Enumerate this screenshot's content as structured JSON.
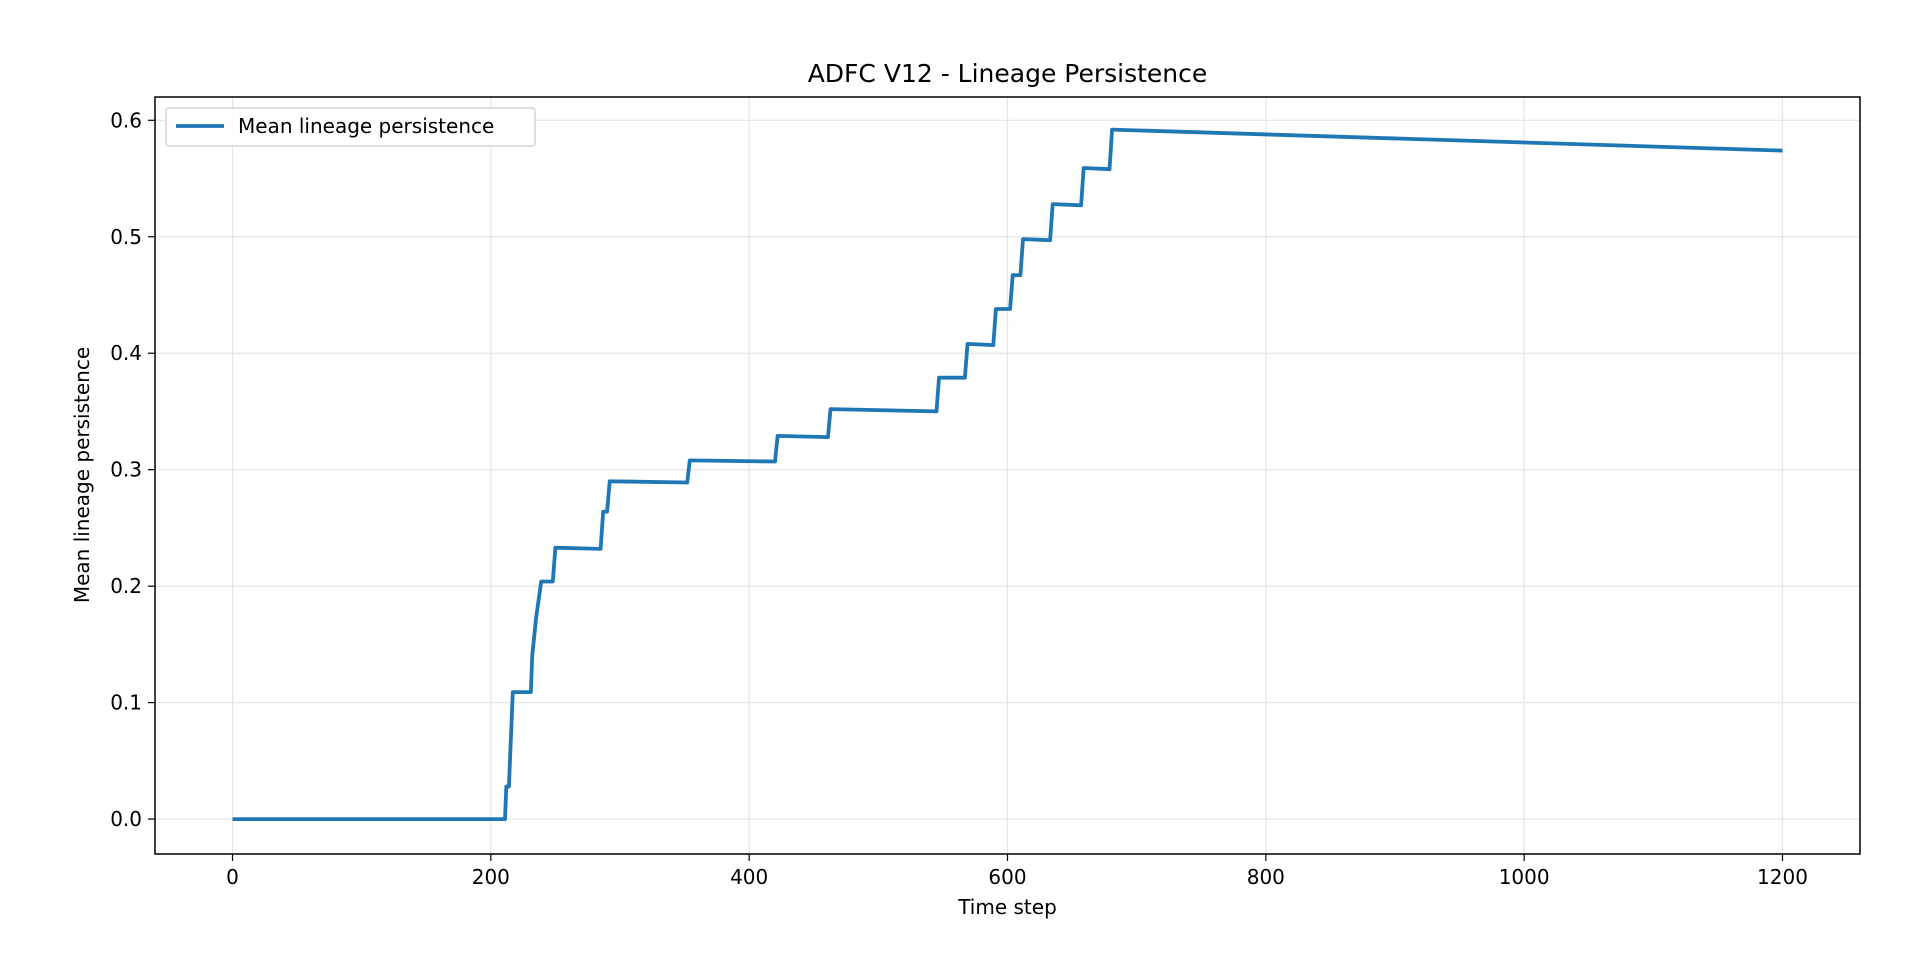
{
  "chart_data": {
    "type": "line",
    "title": "ADFC V12 - Lineage Persistence",
    "xlabel": "Time step",
    "ylabel": "Mean lineage persistence",
    "xlim": [
      -60,
      1260
    ],
    "ylim": [
      -0.03,
      0.62
    ],
    "xticks": [
      0,
      200,
      400,
      600,
      800,
      1000,
      1200
    ],
    "xtick_labels": [
      "0",
      "200",
      "400",
      "600",
      "800",
      "1000",
      "1200"
    ],
    "yticks": [
      0.0,
      0.1,
      0.2,
      0.3,
      0.4,
      0.5,
      0.6
    ],
    "ytick_labels": [
      "0.0",
      "0.1",
      "0.2",
      "0.3",
      "0.4",
      "0.5",
      "0.6"
    ],
    "grid": true,
    "legend_position": "upper-left",
    "series": [
      {
        "name": "Mean lineage persistence",
        "color": "#1f77b4",
        "x": [
          0,
          211,
          212,
          214,
          217,
          231,
          232,
          235,
          239,
          248,
          250,
          285,
          287,
          290,
          292,
          352,
          354,
          420,
          422,
          461,
          463,
          545,
          547,
          567,
          569,
          589,
          591,
          602,
          604,
          610,
          612,
          633,
          635,
          657,
          659,
          679,
          681,
          1200
        ],
        "y": [
          0.0,
          0.0,
          0.028,
          0.028,
          0.109,
          0.109,
          0.14,
          0.172,
          0.204,
          0.204,
          0.233,
          0.232,
          0.264,
          0.264,
          0.29,
          0.289,
          0.308,
          0.307,
          0.329,
          0.328,
          0.352,
          0.35,
          0.379,
          0.379,
          0.408,
          0.407,
          0.438,
          0.438,
          0.467,
          0.467,
          0.498,
          0.497,
          0.528,
          0.527,
          0.559,
          0.558,
          0.592,
          0.574
        ]
      }
    ]
  }
}
